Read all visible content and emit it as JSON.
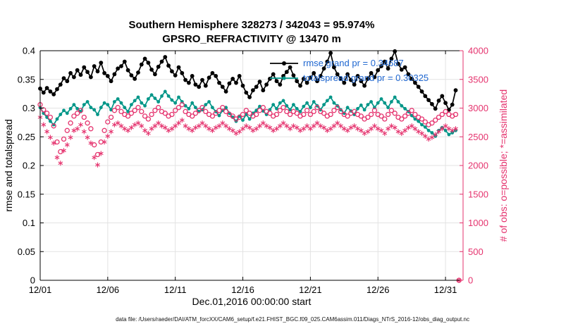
{
  "chart": {
    "title": "Southern Hemisphere 328273 / 342043 = 95.974%",
    "subtitle": "GPSRO_REFRACTIVITY @ 13470 m",
    "ylabel_left": "rmse and totalspread",
    "ylabel_right": "# of obs: o=possible; *=assimilated",
    "xlabel": "Dec.01,2016 00:00:00 start",
    "caption": "data file: /Users/raeder/DAI/ATM_forcXX/CAM6_setup/f.e21.FHIST_BGC.f09_025.CAM6assim.011/Diags_NTrS_2016-12/obs_diag_output.nc"
  },
  "legend": {
    "rmse_label": "rmse grand pr = 0.34687",
    "spread_label": "totalspread grand pr = 0.30325"
  },
  "colors": {
    "rmse": "#000000",
    "spread": "#009688",
    "obs": "#e5336e",
    "legend_text": "#1e66d0",
    "grid": "#e3e3e3"
  },
  "chart_data": {
    "type": "line",
    "title": "Southern Hemisphere 328273 / 342043 = 95.974%",
    "subtitle": "GPSRO_REFRACTIVITY @ 13470 m",
    "xlabel": "Dec.01,2016 00:00:00 start",
    "ylabel_left": "rmse and totalspread",
    "ylabel_right": "# of obs: o=possible; *=assimilated",
    "x_start_day": 1,
    "x_step": 0.25,
    "xlim": [
      1,
      32.3
    ],
    "ylim_left": [
      0,
      0.4
    ],
    "ylim_right": [
      0,
      4000
    ],
    "grid": true,
    "x_tick_values": [
      1,
      6,
      11,
      16,
      21,
      26,
      31
    ],
    "x_tick_labels": [
      "12/01",
      "12/06",
      "12/11",
      "12/16",
      "12/21",
      "12/26",
      "12/31"
    ],
    "y_tick_values_left": [
      0,
      0.05,
      0.1,
      0.15,
      0.2,
      0.25,
      0.3,
      0.35,
      0.4
    ],
    "y_tick_labels_left": [
      "0",
      "0.05",
      "0.1",
      "0.15",
      "0.2",
      "0.25",
      "0.3",
      "0.35",
      "0.4"
    ],
    "y_tick_values_right": [
      0,
      500,
      1000,
      1500,
      2000,
      2500,
      3000,
      3500,
      4000
    ],
    "y_tick_labels_right": [
      "0",
      "500",
      "1000",
      "1500",
      "2000",
      "2500",
      "3000",
      "3500",
      "4000"
    ],
    "series": [
      {
        "name": "rmse",
        "axis": "left",
        "style": "line-dot",
        "color": "#000000",
        "line_width": 1.7,
        "marker_r": 2.9,
        "grand_mean": 0.34687,
        "values": [
          0.334,
          0.327,
          0.335,
          0.329,
          0.324,
          0.333,
          0.341,
          0.352,
          0.347,
          0.361,
          0.354,
          0.366,
          0.358,
          0.371,
          0.363,
          0.354,
          0.373,
          0.364,
          0.379,
          0.361,
          0.356,
          0.347,
          0.359,
          0.369,
          0.373,
          0.381,
          0.366,
          0.357,
          0.351,
          0.362,
          0.376,
          0.386,
          0.379,
          0.367,
          0.359,
          0.372,
          0.381,
          0.389,
          0.374,
          0.364,
          0.357,
          0.371,
          0.361,
          0.349,
          0.344,
          0.356,
          0.341,
          0.337,
          0.349,
          0.339,
          0.353,
          0.361,
          0.356,
          0.344,
          0.337,
          0.329,
          0.343,
          0.351,
          0.344,
          0.356,
          0.339,
          0.327,
          0.319,
          0.331,
          0.337,
          0.346,
          0.331,
          0.341,
          0.351,
          0.359,
          0.347,
          0.341,
          0.356,
          0.363,
          0.371,
          0.357,
          0.347,
          0.339,
          0.351,
          0.344,
          0.353,
          0.361,
          0.347,
          0.356,
          0.369,
          0.381,
          0.396,
          0.371,
          0.359,
          0.351,
          0.344,
          0.359,
          0.349,
          0.341,
          0.356,
          0.347,
          0.339,
          0.351,
          0.361,
          0.354,
          0.366,
          0.373,
          0.381,
          0.369,
          0.386,
          0.399,
          0.377,
          0.367,
          0.371,
          0.359,
          0.351,
          0.344,
          0.337,
          0.329,
          0.321,
          0.314,
          0.307,
          0.299,
          0.313,
          0.321,
          0.309,
          0.297,
          0.306,
          0.331
        ]
      },
      {
        "name": "totalspread",
        "axis": "left",
        "style": "line-dot",
        "color": "#009688",
        "line_width": 1.7,
        "marker_r": 2.4,
        "grand_mean": 0.30325,
        "values": [
          0.301,
          0.291,
          0.284,
          0.277,
          0.271,
          0.281,
          0.289,
          0.296,
          0.291,
          0.299,
          0.306,
          0.299,
          0.294,
          0.306,
          0.311,
          0.301,
          0.297,
          0.289,
          0.301,
          0.309,
          0.306,
          0.297,
          0.311,
          0.316,
          0.309,
          0.301,
          0.294,
          0.306,
          0.313,
          0.319,
          0.309,
          0.304,
          0.316,
          0.323,
          0.317,
          0.311,
          0.321,
          0.329,
          0.321,
          0.314,
          0.309,
          0.319,
          0.311,
          0.304,
          0.299,
          0.309,
          0.301,
          0.294,
          0.297,
          0.306,
          0.311,
          0.301,
          0.294,
          0.287,
          0.296,
          0.301,
          0.291,
          0.284,
          0.277,
          0.286,
          0.279,
          0.289,
          0.281,
          0.291,
          0.296,
          0.303,
          0.295,
          0.289,
          0.297,
          0.306,
          0.299,
          0.309,
          0.313,
          0.304,
          0.297,
          0.306,
          0.299,
          0.294,
          0.303,
          0.309,
          0.301,
          0.311,
          0.304,
          0.297,
          0.306,
          0.313,
          0.319,
          0.309,
          0.304,
          0.297,
          0.291,
          0.301,
          0.295,
          0.289,
          0.299,
          0.305,
          0.297,
          0.306,
          0.311,
          0.301,
          0.309,
          0.316,
          0.309,
          0.301,
          0.311,
          0.319,
          0.311,
          0.304,
          0.299,
          0.294,
          0.287,
          0.281,
          0.277,
          0.271,
          0.267,
          0.261,
          0.257,
          0.251,
          0.261,
          0.266,
          0.261,
          0.254,
          0.257,
          0.261
        ]
      },
      {
        "name": "possible",
        "axis": "right",
        "style": "scatter",
        "marker": "circle",
        "color": "#e5336e",
        "values": [
          3060,
          2970,
          2910,
          2840,
          2690,
          2410,
          2240,
          2460,
          2610,
          2740,
          2860,
          2910,
          2960,
          2840,
          2740,
          2640,
          2360,
          2190,
          2410,
          2610,
          2760,
          2840,
          2960,
          3010,
          2940,
          2890,
          2860,
          2910,
          2960,
          3010,
          2940,
          2860,
          2810,
          2890,
          2960,
          3010,
          2940,
          2910,
          2860,
          2890,
          2960,
          3010,
          3060,
          2940,
          2890,
          2860,
          2910,
          2960,
          3010,
          2940,
          2890,
          2860,
          2910,
          2960,
          3010,
          2940,
          2890,
          2860,
          2810,
          2840,
          2890,
          2960,
          2910,
          2860,
          2890,
          2960,
          3010,
          2940,
          2910,
          2860,
          2890,
          2960,
          3010,
          2940,
          2890,
          2940,
          2910,
          2860,
          2890,
          2960,
          2890,
          2940,
          3010,
          2940,
          2910,
          2860,
          2890,
          2960,
          3010,
          2940,
          2890,
          2860,
          2910,
          2940,
          2890,
          2860,
          2810,
          2840,
          2890,
          2960,
          2890,
          2860,
          2810,
          2890,
          2960,
          2910,
          2840,
          2810,
          2860,
          2910,
          2960,
          2890,
          2840,
          2810,
          2760,
          2710,
          2740,
          2790,
          2840,
          2890,
          2940,
          2890,
          2860,
          2890,
          0
        ]
      },
      {
        "name": "assimilated",
        "axis": "right",
        "style": "scatter",
        "marker": "asterisk",
        "color": "#e5336e",
        "values": [
          2840,
          2710,
          2590,
          2490,
          2390,
          2140,
          2040,
          2260,
          2360,
          2490,
          2610,
          2640,
          2710,
          2590,
          2490,
          2390,
          2140,
          2010,
          2210,
          2410,
          2510,
          2590,
          2710,
          2740,
          2690,
          2640,
          2610,
          2660,
          2710,
          2740,
          2690,
          2610,
          2560,
          2640,
          2690,
          2740,
          2690,
          2660,
          2610,
          2640,
          2690,
          2740,
          2790,
          2690,
          2640,
          2610,
          2660,
          2690,
          2740,
          2690,
          2640,
          2610,
          2660,
          2690,
          2740,
          2690,
          2640,
          2610,
          2560,
          2590,
          2640,
          2690,
          2660,
          2610,
          2640,
          2690,
          2740,
          2690,
          2660,
          2610,
          2640,
          2690,
          2740,
          2690,
          2640,
          2690,
          2660,
          2610,
          2640,
          2690,
          2640,
          2690,
          2740,
          2690,
          2660,
          2610,
          2640,
          2690,
          2740,
          2690,
          2640,
          2610,
          2660,
          2690,
          2640,
          2610,
          2560,
          2590,
          2640,
          2690,
          2640,
          2610,
          2560,
          2640,
          2690,
          2660,
          2590,
          2560,
          2610,
          2660,
          2690,
          2640,
          2590,
          2560,
          2510,
          2460,
          2490,
          2540,
          2590,
          2640,
          2690,
          2640,
          2610,
          2640,
          0
        ]
      }
    ]
  }
}
